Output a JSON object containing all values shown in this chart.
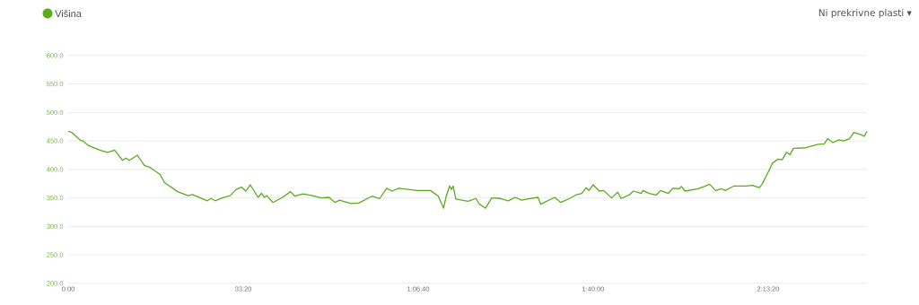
{
  "chart_data": {
    "type": "line",
    "x": [
      0,
      40,
      140,
      170,
      230,
      360,
      450,
      530,
      620,
      660,
      700,
      790,
      870,
      940,
      1050,
      1100,
      1250,
      1370,
      1420,
      1510,
      1590,
      1630,
      1680,
      1760,
      1850,
      1920,
      1980,
      2030,
      2080,
      2170,
      2210,
      2240,
      2270,
      2340,
      2450,
      2540,
      2590,
      2680,
      2790,
      2890,
      2980,
      3050,
      3100,
      3230,
      3320,
      3470,
      3560,
      3640,
      3700,
      3780,
      3990,
      4140,
      4230,
      4290,
      4320,
      4360,
      4380,
      4400,
      4430,
      4570,
      4660,
      4700,
      4770,
      4840,
      4940,
      5030,
      5110,
      5180,
      5250,
      5370,
      5400,
      5560,
      5630,
      5730,
      5800,
      5870,
      5920,
      5950,
      6000,
      6070,
      6120,
      6210,
      6280,
      6320,
      6410,
      6460,
      6550,
      6570,
      6640,
      6720,
      6770,
      6860,
      6910,
      6980,
      7010,
      7050,
      7200,
      7270,
      7330,
      7400,
      7470,
      7510,
      7610,
      7750,
      7820,
      7900,
      7930,
      7990,
      8050,
      8110,
      8160,
      8210,
      8250,
      8290,
      8430,
      8570,
      8640,
      8680,
      8740,
      8810,
      8860,
      8930,
      8980,
      9060,
      9100,
      9130
    ],
    "series": [
      {
        "name": "Višina",
        "color": "#5aab1e",
        "values": [
          467,
          465,
          451,
          450,
          442,
          434,
          430,
          434,
          416,
          420,
          416,
          425,
          407,
          403,
          391,
          377,
          361,
          354,
          356,
          350,
          345,
          349,
          345,
          350,
          354,
          365,
          369,
          362,
          373,
          351,
          358,
          351,
          354,
          342,
          351,
          361,
          353,
          357,
          354,
          350,
          351,
          342,
          346,
          340,
          341,
          353,
          349,
          367,
          362,
          367,
          363,
          363,
          353,
          332,
          353,
          371,
          365,
          371,
          348,
          344,
          349,
          339,
          332,
          350,
          349,
          345,
          351,
          346,
          348,
          351,
          339,
          351,
          342,
          349,
          355,
          358,
          368,
          363,
          373,
          362,
          363,
          350,
          360,
          349,
          355,
          362,
          358,
          363,
          358,
          355,
          363,
          358,
          367,
          366,
          370,
          362,
          366,
          370,
          374,
          363,
          366,
          363,
          371,
          371,
          372,
          368,
          374,
          392,
          411,
          418,
          417,
          430,
          426,
          437,
          438,
          444,
          445,
          454,
          447,
          452,
          450,
          454,
          465,
          461,
          458,
          467
        ]
      }
    ],
    "xlim": [
      0,
      9130
    ],
    "ylim": [
      200,
      600
    ],
    "xticks": [
      {
        "value": 0,
        "label": "0:00"
      },
      {
        "value": 2000,
        "label": "33:20"
      },
      {
        "value": 4000,
        "label": "1:06:40"
      },
      {
        "value": 6000,
        "label": "1:40:00"
      },
      {
        "value": 8000,
        "label": "2:13:20"
      }
    ],
    "yticks": [
      {
        "value": 200,
        "label": "200.0"
      },
      {
        "value": 250,
        "label": "250.0"
      },
      {
        "value": 300,
        "label": "300.0"
      },
      {
        "value": 350,
        "label": "350.0"
      },
      {
        "value": 400,
        "label": "400.0"
      },
      {
        "value": 450,
        "label": "450.0"
      },
      {
        "value": 500,
        "label": "500.0"
      },
      {
        "value": 550,
        "label": "550.0"
      },
      {
        "value": 600,
        "label": "600.0"
      }
    ],
    "grid": "y",
    "legend": "top left",
    "marker": "none",
    "line_style": "solid",
    "annotations": [
      "Ni prekrivne plasti ▾"
    ]
  }
}
